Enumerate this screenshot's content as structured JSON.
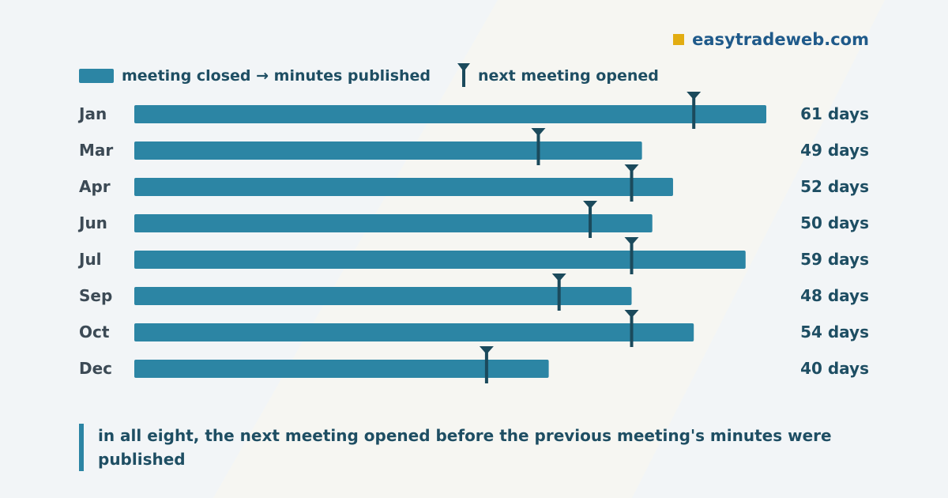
{
  "brand": {
    "name": "easytradeweb.com"
  },
  "legend": {
    "bar_label": "meeting closed → minutes published",
    "marker_label": "next meeting opened"
  },
  "note": "in all eight, the next meeting opened before the previous meeting's minutes were published",
  "colors": {
    "bar": "#2c85a4",
    "marker": "#1b4a5c",
    "brand_square": "#e2ad12",
    "brand_text": "#1f5a8a"
  },
  "chart_data": {
    "type": "bar",
    "orientation": "horizontal",
    "categories": [
      "Jan",
      "Mar",
      "Apr",
      "Jun",
      "Jul",
      "Sep",
      "Oct",
      "Dec"
    ],
    "series": [
      {
        "name": "meeting closed → minutes published",
        "values": [
          61,
          49,
          52,
          50,
          59,
          48,
          54,
          40
        ]
      },
      {
        "name": "next meeting opened",
        "values": [
          54,
          39,
          48,
          44,
          48,
          41,
          48,
          34
        ]
      }
    ],
    "value_labels": [
      "61 days",
      "49 days",
      "52 days",
      "50 days",
      "59 days",
      "48 days",
      "54 days",
      "40 days"
    ],
    "xlim": [
      0,
      61
    ],
    "grid": false,
    "legend_position": "top-left"
  }
}
